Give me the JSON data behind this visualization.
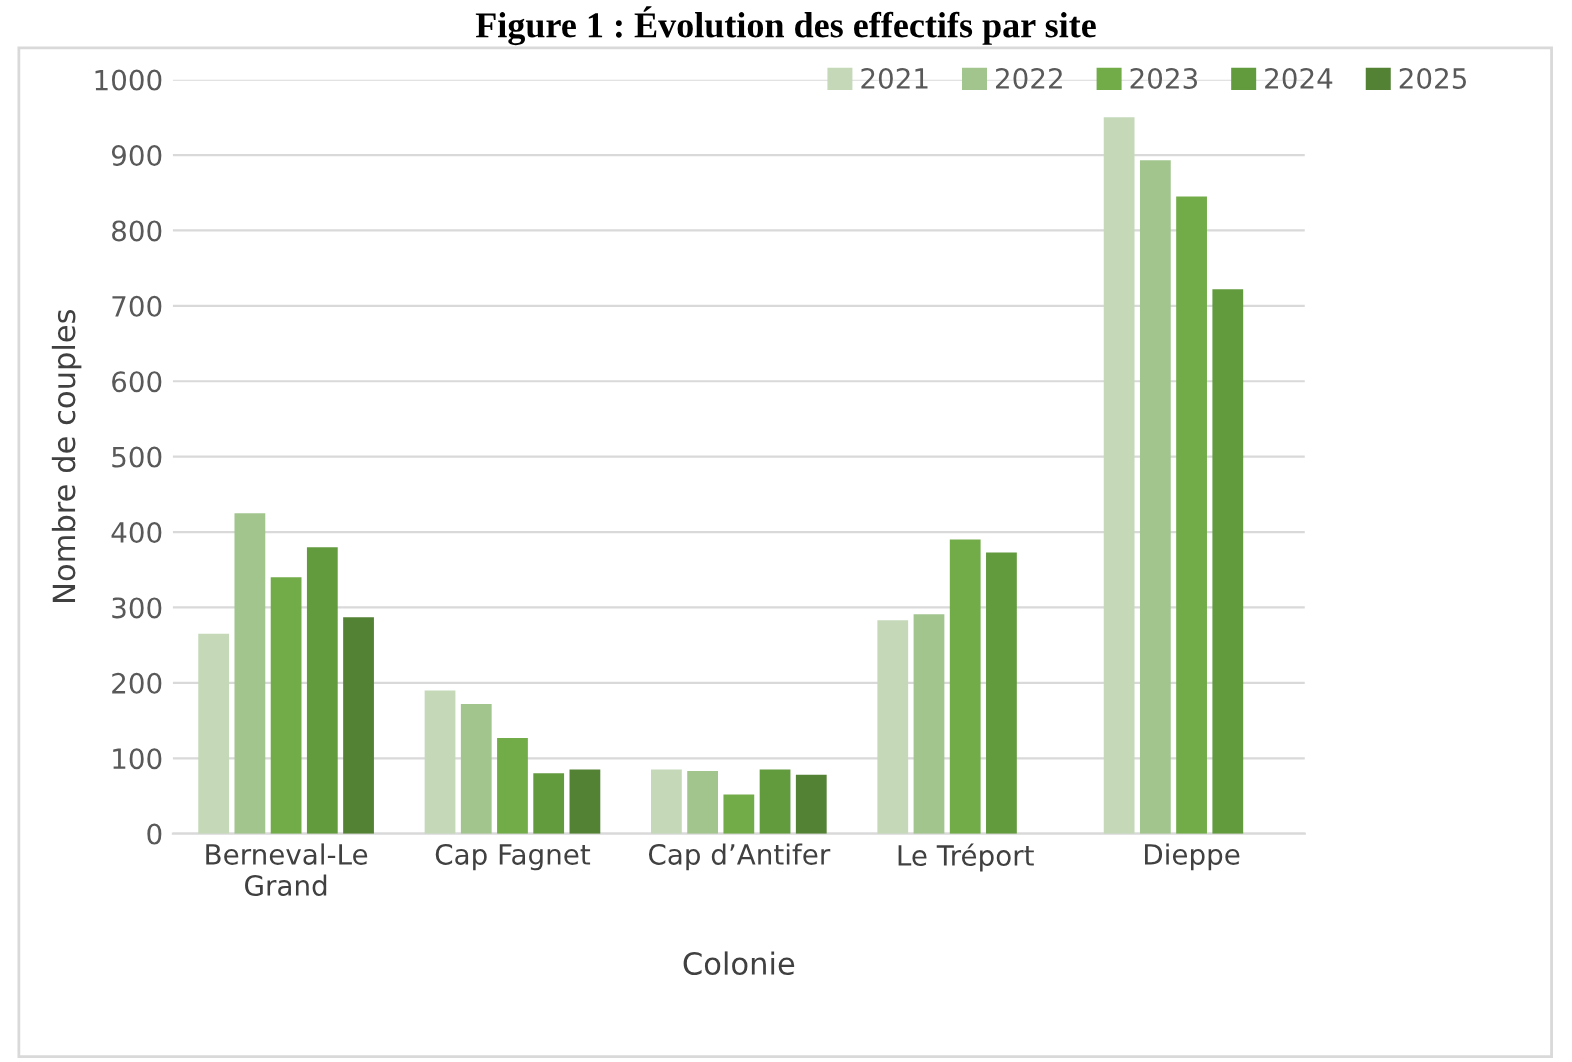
{
  "chart_data": {
    "type": "bar",
    "title": "Figure 1 : Évolution des effectifs par site",
    "xlabel": "Colonie",
    "ylabel": "Nombre de couples",
    "categories": [
      "Berneval-Le Grand",
      "Cap Fagnet",
      "Cap d’Antifer",
      "Le Tréport",
      "Dieppe"
    ],
    "series": [
      {
        "name": "2021",
        "color": "#c5d9b9",
        "values": [
          265,
          190,
          85,
          283,
          950
        ]
      },
      {
        "name": "2022",
        "color": "#a2c58e",
        "values": [
          425,
          172,
          83,
          291,
          893
        ]
      },
      {
        "name": "2023",
        "color": "#72ac49",
        "values": [
          340,
          127,
          52,
          390,
          845
        ]
      },
      {
        "name": "2024",
        "color": "#629a3e",
        "values": [
          380,
          80,
          85,
          373,
          722
        ]
      },
      {
        "name": "2025",
        "color": "#548235",
        "values": [
          287,
          85,
          78,
          null,
          null
        ]
      }
    ],
    "ylim": [
      0,
      1000
    ],
    "yticks": [
      0,
      100,
      200,
      300,
      400,
      500,
      600,
      700,
      800,
      900,
      1000
    ],
    "grid": "y",
    "legend": "top right"
  }
}
